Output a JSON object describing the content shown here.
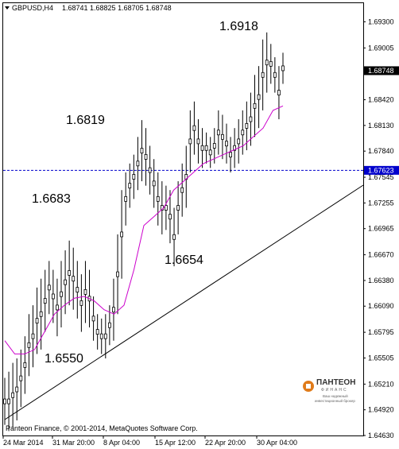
{
  "header": {
    "symbol": "GBPUSD,H4",
    "ohlc": "1.68741 1.68825 1.68705 1.68748"
  },
  "footer": {
    "copyright": "Panteon Finance, © 2001-2014, MetaQuotes Software Corp."
  },
  "logo": {
    "name": "ПАНТЕОН",
    "sub": "ФИНАНС",
    "tagline1": "Ваш надежный",
    "tagline2": "инвестиционный брокер"
  },
  "colors": {
    "candles": "#000000",
    "ma": "#cc00cc",
    "support_line": "#000000",
    "horizontal_level": "#0000cc",
    "tag_bg_current": "#000000",
    "tag_bg_level": "#0000cc"
  },
  "chart_data": {
    "type": "candlestick",
    "symbol": "GBPUSD",
    "timeframe": "H4",
    "title": "GBPUSD,H4",
    "ylim": [
      1.6463,
      1.6951
    ],
    "y_ticks": [
      "1.69300",
      "1.69005",
      "1.68420",
      "1.68130",
      "1.67840",
      "1.67545",
      "1.67255",
      "1.66965",
      "1.66670",
      "1.66380",
      "1.66090",
      "1.65795",
      "1.65505",
      "1.65210",
      "1.64920",
      "1.64630"
    ],
    "x_ticks": [
      "24 Mar 2014",
      "31 Mar 20:00",
      "8 Apr 04:00",
      "15 Apr 12:00",
      "22 Apr 20:00",
      "30 Apr 04:00"
    ],
    "current_price": "1.68748",
    "level_price": "1.67623",
    "annotations": [
      {
        "text": "1.6918",
        "price": 1.6918
      },
      {
        "text": "1.6819",
        "price": 1.6819
      },
      {
        "text": "1.6683",
        "price": 1.6683
      },
      {
        "text": "1.6654",
        "price": 1.6654
      },
      {
        "text": "1.6550",
        "price": 1.655
      }
    ],
    "bars_hl": [
      [
        1.6475,
        1.6528
      ],
      [
        1.6468,
        1.6535
      ],
      [
        1.6472,
        1.6545
      ],
      [
        1.648,
        1.655
      ],
      [
        1.6495,
        1.656
      ],
      [
        1.651,
        1.6575
      ],
      [
        1.653,
        1.66
      ],
      [
        1.654,
        1.661
      ],
      [
        1.6555,
        1.663
      ],
      [
        1.656,
        1.664
      ],
      [
        1.658,
        1.665
      ],
      [
        1.66,
        1.666
      ],
      [
        1.659,
        1.665
      ],
      [
        1.6575,
        1.664
      ],
      [
        1.6585,
        1.666
      ],
      [
        1.66,
        1.6672
      ],
      [
        1.661,
        1.6683
      ],
      [
        1.6605,
        1.6675
      ],
      [
        1.6595,
        1.666
      ],
      [
        1.658,
        1.6645
      ],
      [
        1.659,
        1.666
      ],
      [
        1.6585,
        1.665
      ],
      [
        1.657,
        1.662
      ],
      [
        1.656,
        1.66
      ],
      [
        1.6555,
        1.6595
      ],
      [
        1.655,
        1.66
      ],
      [
        1.6565,
        1.661
      ],
      [
        1.657,
        1.664
      ],
      [
        1.66,
        1.669
      ],
      [
        1.664,
        1.674
      ],
      [
        1.67,
        1.676
      ],
      [
        1.672,
        1.677
      ],
      [
        1.673,
        1.678
      ],
      [
        1.674,
        1.68
      ],
      [
        1.675,
        1.6819
      ],
      [
        1.6745,
        1.681
      ],
      [
        1.6735,
        1.679
      ],
      [
        1.672,
        1.6775
      ],
      [
        1.67,
        1.676
      ],
      [
        1.669,
        1.675
      ],
      [
        1.6695,
        1.6745
      ],
      [
        1.668,
        1.674
      ],
      [
        1.6654,
        1.672
      ],
      [
        1.669,
        1.675
      ],
      [
        1.671,
        1.677
      ],
      [
        1.672,
        1.679
      ],
      [
        1.676,
        1.683
      ],
      [
        1.678,
        1.684
      ],
      [
        1.677,
        1.682
      ],
      [
        1.6765,
        1.681
      ],
      [
        1.677,
        1.6805
      ],
      [
        1.6765,
        1.68
      ],
      [
        1.677,
        1.681
      ],
      [
        1.678,
        1.683
      ],
      [
        1.6775,
        1.6825
      ],
      [
        1.677,
        1.6815
      ],
      [
        1.676,
        1.68
      ],
      [
        1.6765,
        1.681
      ],
      [
        1.677,
        1.682
      ],
      [
        1.678,
        1.683
      ],
      [
        1.6785,
        1.684
      ],
      [
        1.679,
        1.685
      ],
      [
        1.68,
        1.687
      ],
      [
        1.681,
        1.688
      ],
      [
        1.683,
        1.691
      ],
      [
        1.685,
        1.6918
      ],
      [
        1.686,
        1.6905
      ],
      [
        1.685,
        1.689
      ],
      [
        1.682,
        1.688
      ],
      [
        1.686,
        1.6895
      ]
    ],
    "ma_line": [
      1.657,
      1.6555,
      1.6555,
      1.656,
      1.658,
      1.66,
      1.661,
      1.6618,
      1.662,
      1.6615,
      1.6605,
      1.66,
      1.661,
      1.665,
      1.67,
      1.671,
      1.672,
      1.674,
      1.675,
      1.676,
      1.677,
      1.6775,
      1.678,
      1.6785,
      1.679,
      1.68,
      1.681,
      1.683,
      1.6835
    ]
  }
}
